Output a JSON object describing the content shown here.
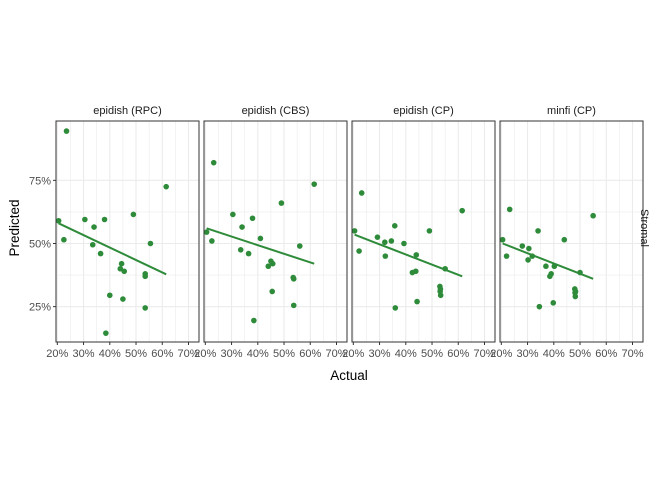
{
  "chart_data": {
    "type": "scatter",
    "xlabel": "Actual",
    "ylabel": "Predicted",
    "row_strip": "Stromal",
    "xlim": [
      0.195,
      0.74
    ],
    "ylim": [
      0.11,
      0.985
    ],
    "xticks": [
      {
        "value": 0.2,
        "label": "20%"
      },
      {
        "value": 0.3,
        "label": "30%"
      },
      {
        "value": 0.4,
        "label": "40%"
      },
      {
        "value": 0.5,
        "label": "50%"
      },
      {
        "value": 0.6,
        "label": "60%"
      },
      {
        "value": 0.7,
        "label": "70%"
      }
    ],
    "yticks": [
      {
        "value": 0.25,
        "label": "25%"
      },
      {
        "value": 0.5,
        "label": "50%"
      },
      {
        "value": 0.75,
        "label": "75%"
      }
    ],
    "colors": {
      "point": "#2e8b3a",
      "line": "#2e8b3a",
      "grid": "#ebebeb",
      "border": "#333333",
      "strip_bg": "#ffffff"
    },
    "grid": true,
    "panels": [
      {
        "name": "epidish (RPC)",
        "points": [
          [
            0.205,
            0.59
          ],
          [
            0.225,
            0.515
          ],
          [
            0.235,
            0.945
          ],
          [
            0.305,
            0.595
          ],
          [
            0.335,
            0.495
          ],
          [
            0.34,
            0.565
          ],
          [
            0.365,
            0.46
          ],
          [
            0.38,
            0.595
          ],
          [
            0.385,
            0.145
          ],
          [
            0.4,
            0.295
          ],
          [
            0.44,
            0.4
          ],
          [
            0.445,
            0.42
          ],
          [
            0.45,
            0.28
          ],
          [
            0.455,
            0.39
          ],
          [
            0.49,
            0.615
          ],
          [
            0.535,
            0.37
          ],
          [
            0.535,
            0.38
          ],
          [
            0.535,
            0.245
          ],
          [
            0.555,
            0.5
          ],
          [
            0.615,
            0.725
          ]
        ],
        "trend": [
          [
            0.205,
            0.58
          ],
          [
            0.615,
            0.378
          ]
        ]
      },
      {
        "name": "epidish (CBS)",
        "points": [
          [
            0.205,
            0.545
          ],
          [
            0.225,
            0.51
          ],
          [
            0.232,
            0.82
          ],
          [
            0.305,
            0.615
          ],
          [
            0.335,
            0.475
          ],
          [
            0.34,
            0.565
          ],
          [
            0.365,
            0.46
          ],
          [
            0.38,
            0.6
          ],
          [
            0.385,
            0.195
          ],
          [
            0.41,
            0.52
          ],
          [
            0.44,
            0.41
          ],
          [
            0.45,
            0.43
          ],
          [
            0.455,
            0.31
          ],
          [
            0.457,
            0.42
          ],
          [
            0.49,
            0.66
          ],
          [
            0.535,
            0.365
          ],
          [
            0.537,
            0.36
          ],
          [
            0.537,
            0.255
          ],
          [
            0.56,
            0.49
          ],
          [
            0.615,
            0.735
          ]
        ],
        "trend": [
          [
            0.205,
            0.56
          ],
          [
            0.615,
            0.42
          ]
        ]
      },
      {
        "name": "epidish (CP)",
        "points": [
          [
            0.205,
            0.55
          ],
          [
            0.222,
            0.47
          ],
          [
            0.232,
            0.7
          ],
          [
            0.292,
            0.525
          ],
          [
            0.32,
            0.505
          ],
          [
            0.322,
            0.45
          ],
          [
            0.345,
            0.51
          ],
          [
            0.358,
            0.57
          ],
          [
            0.36,
            0.245
          ],
          [
            0.393,
            0.5
          ],
          [
            0.425,
            0.385
          ],
          [
            0.438,
            0.39
          ],
          [
            0.44,
            0.455
          ],
          [
            0.443,
            0.27
          ],
          [
            0.49,
            0.55
          ],
          [
            0.53,
            0.33
          ],
          [
            0.531,
            0.31
          ],
          [
            0.532,
            0.32
          ],
          [
            0.533,
            0.295
          ],
          [
            0.55,
            0.4
          ],
          [
            0.615,
            0.63
          ]
        ],
        "trend": [
          [
            0.205,
            0.535
          ],
          [
            0.615,
            0.37
          ]
        ]
      },
      {
        "name": "minfi (CP)",
        "points": [
          [
            0.205,
            0.515
          ],
          [
            0.22,
            0.45
          ],
          [
            0.232,
            0.635
          ],
          [
            0.28,
            0.49
          ],
          [
            0.302,
            0.435
          ],
          [
            0.305,
            0.48
          ],
          [
            0.318,
            0.45
          ],
          [
            0.34,
            0.55
          ],
          [
            0.345,
            0.25
          ],
          [
            0.37,
            0.41
          ],
          [
            0.385,
            0.37
          ],
          [
            0.39,
            0.38
          ],
          [
            0.398,
            0.265
          ],
          [
            0.402,
            0.41
          ],
          [
            0.44,
            0.515
          ],
          [
            0.48,
            0.32
          ],
          [
            0.481,
            0.305
          ],
          [
            0.482,
            0.29
          ],
          [
            0.483,
            0.31
          ],
          [
            0.5,
            0.385
          ],
          [
            0.55,
            0.61
          ]
        ],
        "trend": [
          [
            0.205,
            0.5
          ],
          [
            0.55,
            0.36
          ]
        ]
      }
    ]
  }
}
